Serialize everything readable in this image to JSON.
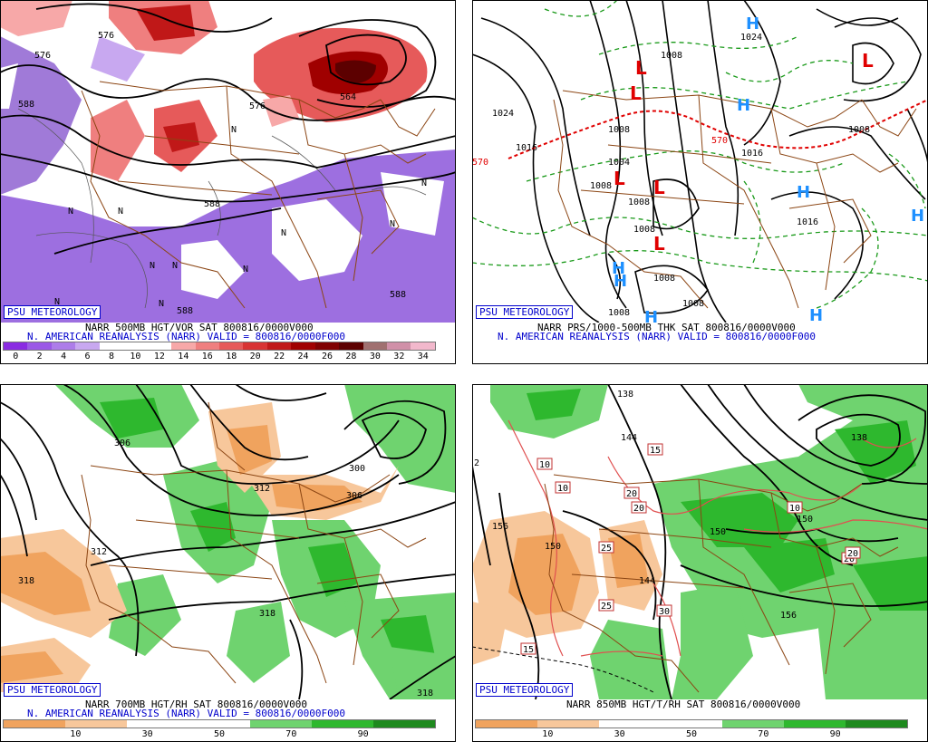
{
  "badge": "PSU METEOROLOGY",
  "panels": [
    {
      "id": "vor500",
      "title_line1": "NARR 500MB HGT/VOR SAT 800816/0000V000",
      "title_line2": "N. AMERICAN REANALYSIS (NARR) VALID = 800816/0000F000",
      "colorbar_ticks": [
        "0",
        "2",
        "4",
        "6",
        "8",
        "10",
        "12",
        "14",
        "16",
        "18",
        "20",
        "22",
        "24",
        "26",
        "28",
        "30",
        "32",
        "34"
      ],
      "colorbar_colors": [
        "#8a2be2",
        "#9b59e6",
        "#ad7de9",
        "#c8a8f0",
        "#ffffff",
        "#ffffff",
        "#ffffff",
        "#f7a8a8",
        "#ef7f7f",
        "#e65a5a",
        "#d83333",
        "#c01818",
        "#a00000",
        "#800000",
        "#5c0000",
        "#a07070",
        "#d090a8",
        "#f2b8cc"
      ],
      "contour_labels": [
        "576",
        "588",
        "588",
        "576",
        "564",
        "564",
        "576",
        "588",
        "588"
      ],
      "n_markers": [
        "N",
        "N",
        "N",
        "N",
        "N",
        "N",
        "N",
        "N",
        "N",
        "N",
        "N"
      ]
    },
    {
      "id": "prs",
      "title_line1": "NARR PRS/1000-500MB THK SAT 800816/0000V000",
      "title_line2": "N. AMERICAN REANALYSIS (NARR) VALID = 800816/0000F000",
      "contour_labels": [
        "1024",
        "1016",
        "1008",
        "1008",
        "1008",
        "1008",
        "1008",
        "1008",
        "1008",
        "1016",
        "1016",
        "1024",
        "1008",
        "1008",
        "570",
        "570",
        "1004",
        "1012"
      ],
      "h_markers": [
        "H",
        "H",
        "H",
        "H",
        "H",
        "H",
        "H",
        "H"
      ],
      "l_markers": [
        "L",
        "L",
        "L",
        "L",
        "L",
        "L",
        "L"
      ]
    },
    {
      "id": "rh700",
      "title_line1": "NARR 700MB HGT/RH SAT 800816/0000V000",
      "title_line2": "N. AMERICAN REANALYSIS (NARR) VALID = 800816/0000F000",
      "colorbar_ticks": [
        "10",
        "30",
        "50",
        "70",
        "90"
      ],
      "colorbar_colors": [
        "#f0a35e",
        "#f7c79b",
        "#ffffff",
        "#ffffff",
        "#6fd36f",
        "#2eb82e",
        "#1e8a1e"
      ],
      "contour_labels": [
        "306",
        "306",
        "312",
        "318",
        "312",
        "306",
        "306",
        "300",
        "300",
        "318",
        "318"
      ]
    },
    {
      "id": "t850",
      "title_line1": "NARR 850MB HGT/T/RH SAT 800816/0000V000",
      "colorbar_ticks": [
        "10",
        "30",
        "50",
        "70",
        "90"
      ],
      "colorbar_colors": [
        "#f0a35e",
        "#f7c79b",
        "#ffffff",
        "#ffffff",
        "#6fd36f",
        "#2eb82e",
        "#1e8a1e"
      ],
      "contour_labels": [
        "138",
        "144",
        "150",
        "156",
        "150",
        "144",
        "150",
        "150",
        "156",
        "138"
      ],
      "temp_boxes": [
        "10",
        "10",
        "15",
        "20",
        "20",
        "25",
        "25",
        "30",
        "15",
        "20",
        "10",
        "20"
      ],
      "edge_label": "2"
    }
  ]
}
